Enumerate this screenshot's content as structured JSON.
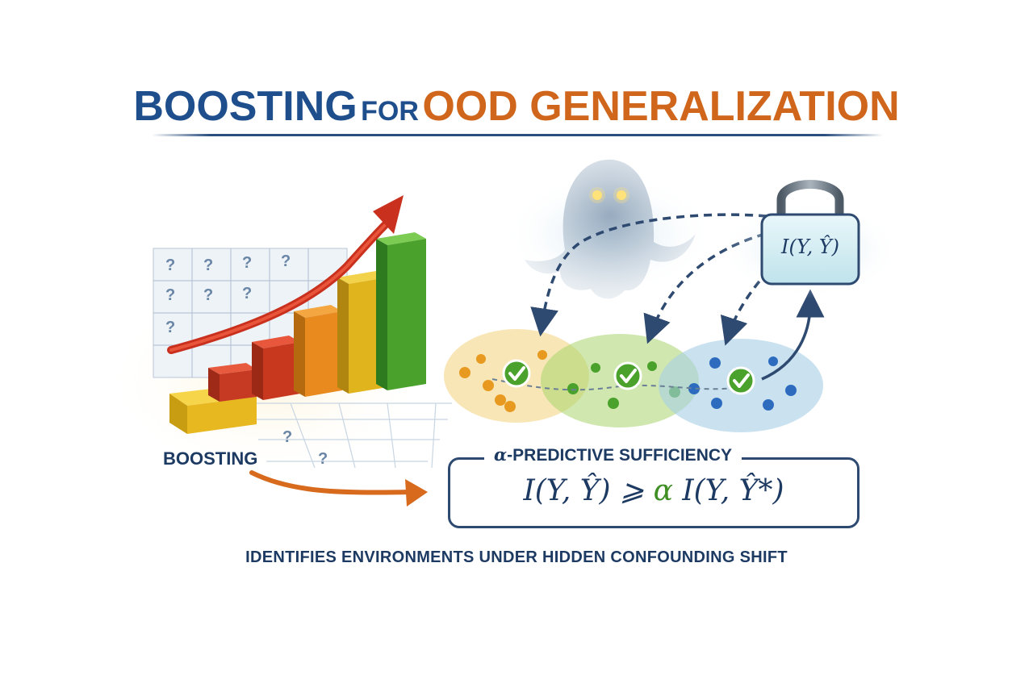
{
  "title": {
    "part1": "BOOSTING",
    "part2": "FOR",
    "part3": "OOD GENERALIZATION"
  },
  "boosting_label": "BOOSTING",
  "grid_marks": [
    "?",
    "?",
    "?",
    "?",
    "?",
    "?",
    "?",
    "?",
    "?",
    "?"
  ],
  "lock_formula": "I(Y, Ŷ)",
  "sufficiency": {
    "title_alpha": "α",
    "title_rest": "-PREDICTIVE SUFFICIENCY",
    "formula_left": "I(Y, Ŷ) ⩾ ",
    "formula_alpha": "α",
    "formula_right": " I(Y, Ŷ*)"
  },
  "footer": "IDENTIFIES ENVIRONMENTS UNDER HIDDEN CONFOUNDING SHIFT",
  "colors": {
    "navy": "#1d3a63",
    "orange": "#d0661c",
    "green_check": "#3f8f24",
    "env_orange": "#f0c35a",
    "env_green": "#a8d46a",
    "env_blue": "#9cc9e0"
  },
  "icons": {
    "ghost": "ghost-icon",
    "lock": "padlock-icon",
    "check": "check-icon",
    "arrow": "trend-arrow-icon"
  }
}
